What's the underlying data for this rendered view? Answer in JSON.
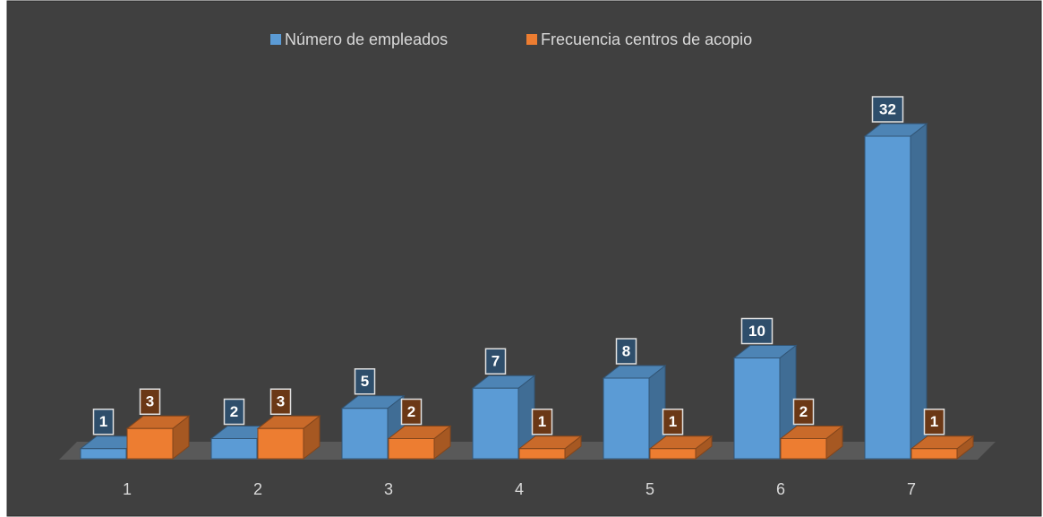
{
  "chart_data": {
    "type": "bar",
    "categories": [
      "1",
      "2",
      "3",
      "4",
      "5",
      "6",
      "7"
    ],
    "series": [
      {
        "name": "Número de empleados",
        "color": "#5b9bd5",
        "values": [
          1,
          2,
          5,
          7,
          8,
          10,
          32
        ]
      },
      {
        "name": "Frecuencia centros de acopio",
        "color": "#ed7d31",
        "values": [
          3,
          3,
          2,
          1,
          1,
          2,
          1
        ]
      }
    ],
    "legend": "top"
  }
}
